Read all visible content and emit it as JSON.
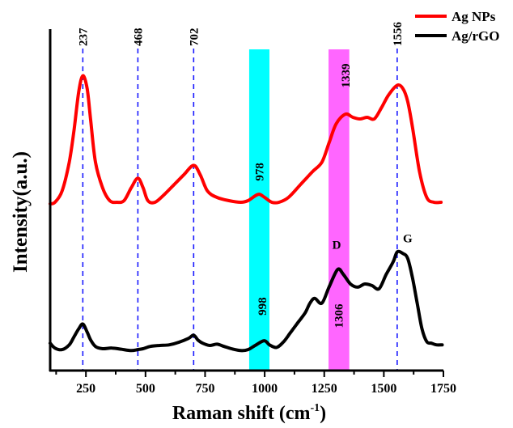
{
  "chart_data": {
    "type": "line",
    "xlabel": "Raman shift (cm",
    "xlabel_sup": "-1",
    "xlabel_close": ")",
    "ylabel": "Intensity(a.u.)",
    "xlim": [
      100,
      1750
    ],
    "ylim": [
      0,
      100
    ],
    "x_ticks": [
      250,
      500,
      750,
      1000,
      1250,
      1500,
      1750
    ],
    "series": [
      {
        "name": "Ag NPs",
        "color": "#ff0000",
        "points": [
          [
            100,
            49
          ],
          [
            120,
            49.5
          ],
          [
            150,
            53
          ],
          [
            180,
            62
          ],
          [
            200,
            72
          ],
          [
            220,
            84
          ],
          [
            237,
            89
          ],
          [
            255,
            85
          ],
          [
            270,
            75
          ],
          [
            290,
            62
          ],
          [
            320,
            54
          ],
          [
            350,
            50
          ],
          [
            380,
            49.5
          ],
          [
            410,
            50
          ],
          [
            440,
            54
          ],
          [
            468,
            57
          ],
          [
            490,
            54
          ],
          [
            510,
            50
          ],
          [
            540,
            49.5
          ],
          [
            580,
            52
          ],
          [
            620,
            55
          ],
          [
            660,
            58
          ],
          [
            702,
            61
          ],
          [
            730,
            58
          ],
          [
            760,
            53
          ],
          [
            800,
            51
          ],
          [
            850,
            50
          ],
          [
            900,
            49.5
          ],
          [
            930,
            50
          ],
          [
            960,
            51.5
          ],
          [
            978,
            52
          ],
          [
            1000,
            51
          ],
          [
            1030,
            49.5
          ],
          [
            1060,
            49.5
          ],
          [
            1100,
            51
          ],
          [
            1150,
            55
          ],
          [
            1200,
            59
          ],
          [
            1240,
            62
          ],
          [
            1270,
            68
          ],
          [
            1300,
            74
          ],
          [
            1339,
            77
          ],
          [
            1370,
            76
          ],
          [
            1400,
            75.5
          ],
          [
            1430,
            76
          ],
          [
            1460,
            75.5
          ],
          [
            1490,
            79
          ],
          [
            1520,
            83
          ],
          [
            1556,
            86
          ],
          [
            1580,
            85
          ],
          [
            1600,
            81
          ],
          [
            1620,
            73
          ],
          [
            1650,
            59
          ],
          [
            1680,
            51
          ],
          [
            1710,
            49.5
          ],
          [
            1740,
            49.5
          ]
        ]
      },
      {
        "name": "Ag/rGO",
        "color": "#000000",
        "points": [
          [
            100,
            5.5
          ],
          [
            120,
            4
          ],
          [
            150,
            3.5
          ],
          [
            180,
            5
          ],
          [
            200,
            7.5
          ],
          [
            220,
            10
          ],
          [
            237,
            11.5
          ],
          [
            255,
            9
          ],
          [
            270,
            6.5
          ],
          [
            290,
            4.5
          ],
          [
            320,
            3.8
          ],
          [
            360,
            4
          ],
          [
            400,
            3.6
          ],
          [
            440,
            3.2
          ],
          [
            468,
            3.5
          ],
          [
            490,
            3.8
          ],
          [
            520,
            4.5
          ],
          [
            560,
            4.8
          ],
          [
            600,
            5
          ],
          [
            640,
            5.8
          ],
          [
            680,
            7
          ],
          [
            702,
            8
          ],
          [
            720,
            6.5
          ],
          [
            740,
            5.5
          ],
          [
            770,
            4.8
          ],
          [
            800,
            5.2
          ],
          [
            830,
            4.5
          ],
          [
            860,
            3.8
          ],
          [
            900,
            3.2
          ],
          [
            930,
            3.5
          ],
          [
            960,
            4.8
          ],
          [
            998,
            6.3
          ],
          [
            1020,
            5
          ],
          [
            1050,
            4.2
          ],
          [
            1080,
            6
          ],
          [
            1110,
            9
          ],
          [
            1140,
            12
          ],
          [
            1170,
            15
          ],
          [
            1190,
            18
          ],
          [
            1210,
            19.5
          ],
          [
            1240,
            18
          ],
          [
            1270,
            23
          ],
          [
            1306,
            28.5
          ],
          [
            1330,
            27
          ],
          [
            1360,
            24
          ],
          [
            1390,
            23
          ],
          [
            1420,
            24
          ],
          [
            1450,
            23.5
          ],
          [
            1480,
            22.5
          ],
          [
            1510,
            27
          ],
          [
            1540,
            31
          ],
          [
            1556,
            34
          ],
          [
            1580,
            33.5
          ],
          [
            1600,
            32
          ],
          [
            1620,
            26
          ],
          [
            1640,
            18
          ],
          [
            1660,
            10
          ],
          [
            1680,
            6
          ],
          [
            1700,
            5.5
          ],
          [
            1720,
            5
          ],
          [
            1745,
            5
          ]
        ]
      }
    ],
    "peak_lines": [
      237,
      468,
      702,
      1556
    ],
    "peak_labels": [
      "237",
      "468",
      "702",
      "1556"
    ],
    "bands": [
      {
        "x0": 935,
        "x1": 1020,
        "color": "#00ffff"
      },
      {
        "x0": 1268,
        "x1": 1355,
        "color": "#ff66ff"
      }
    ],
    "in_plot_labels": [
      {
        "text": "978",
        "x": 978,
        "y": 59,
        "rotate": true
      },
      {
        "text": "1339",
        "x": 1339,
        "y": 89,
        "rotate": true
      },
      {
        "text": "998",
        "x": 990,
        "y": 17,
        "rotate": true
      },
      {
        "text": "1306",
        "x": 1310,
        "y": 14,
        "rotate": true
      },
      {
        "text": "D",
        "x": 1302,
        "y": 35,
        "rotate": false
      },
      {
        "text": "G",
        "x": 1600,
        "y": 37,
        "rotate": false
      }
    ],
    "legend": {
      "position": "top-right",
      "entries": [
        "Ag NPs",
        "Ag/rGO"
      ]
    },
    "grid": false
  }
}
